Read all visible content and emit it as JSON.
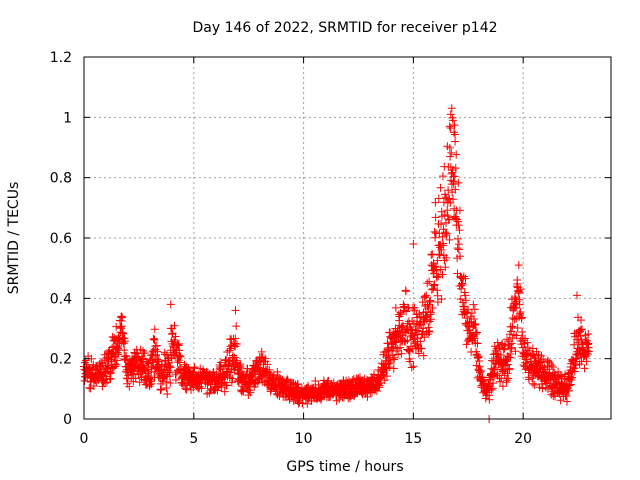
{
  "chart_data": {
    "type": "scatter",
    "title": "Day 146 of 2022, SRMTID for receiver p142",
    "xlabel": "GPS time / hours",
    "ylabel": "SRMTID / TECUs",
    "xlim": [
      0,
      24
    ],
    "ylim": [
      0,
      1.2
    ],
    "xticks": [
      0,
      5,
      10,
      15,
      20
    ],
    "xtick_labels": [
      "0",
      "5",
      "10",
      "15",
      "20"
    ],
    "yticks": [
      0,
      0.2,
      0.4,
      0.6,
      0.8,
      1.0,
      1.2
    ],
    "ytick_labels": [
      "0",
      "0.2",
      "0.4",
      "0.6",
      "0.8",
      "1",
      "1.2"
    ],
    "grid": true,
    "marker": "+",
    "color": "#ff0000",
    "envelope": {
      "x": [
        0.0,
        0.5,
        1.0,
        1.5,
        1.75,
        2.0,
        2.5,
        3.0,
        3.2,
        3.5,
        3.9,
        4.0,
        4.5,
        5.0,
        5.5,
        6.0,
        6.5,
        6.9,
        7.0,
        7.5,
        8.0,
        8.5,
        9.0,
        9.5,
        10.0,
        10.5,
        11.0,
        11.5,
        12.0,
        12.5,
        13.0,
        13.5,
        14.0,
        14.3,
        14.6,
        14.9,
        15.2,
        15.5,
        15.8,
        16.0,
        16.2,
        16.4,
        16.6,
        16.8,
        16.9,
        17.0,
        17.2,
        17.5,
        17.8,
        18.0,
        18.3,
        18.5,
        18.8,
        19.0,
        19.3,
        19.6,
        19.8,
        20.0,
        20.3,
        20.6,
        21.0,
        21.5,
        22.0,
        22.3,
        22.5,
        22.8,
        23.0
      ],
      "y": [
        0.16,
        0.15,
        0.16,
        0.24,
        0.3,
        0.15,
        0.2,
        0.14,
        0.22,
        0.14,
        0.18,
        0.25,
        0.15,
        0.13,
        0.13,
        0.12,
        0.16,
        0.25,
        0.14,
        0.12,
        0.18,
        0.12,
        0.11,
        0.09,
        0.08,
        0.09,
        0.1,
        0.09,
        0.1,
        0.11,
        0.1,
        0.14,
        0.24,
        0.28,
        0.36,
        0.26,
        0.3,
        0.34,
        0.4,
        0.52,
        0.58,
        0.62,
        0.78,
        0.88,
        0.8,
        0.62,
        0.45,
        0.3,
        0.28,
        0.16,
        0.08,
        0.12,
        0.2,
        0.18,
        0.2,
        0.34,
        0.4,
        0.22,
        0.18,
        0.17,
        0.15,
        0.12,
        0.1,
        0.2,
        0.26,
        0.22,
        0.24
      ],
      "spread": [
        0.05,
        0.05,
        0.05,
        0.07,
        0.08,
        0.05,
        0.07,
        0.05,
        0.08,
        0.05,
        0.09,
        0.1,
        0.05,
        0.04,
        0.04,
        0.04,
        0.06,
        0.1,
        0.05,
        0.04,
        0.06,
        0.04,
        0.04,
        0.03,
        0.03,
        0.03,
        0.03,
        0.03,
        0.03,
        0.03,
        0.03,
        0.04,
        0.08,
        0.09,
        0.12,
        0.09,
        0.1,
        0.12,
        0.14,
        0.18,
        0.2,
        0.2,
        0.2,
        0.18,
        0.18,
        0.2,
        0.16,
        0.08,
        0.08,
        0.05,
        0.03,
        0.05,
        0.08,
        0.08,
        0.08,
        0.12,
        0.12,
        0.07,
        0.06,
        0.06,
        0.05,
        0.05,
        0.04,
        0.08,
        0.09,
        0.06,
        0.04
      ],
      "samples_per_hour": 90,
      "x_end": 23.0
    },
    "peaks": [
      {
        "x": 16.75,
        "y": 1.03
      },
      {
        "x": 16.7,
        "y": 1.01
      },
      {
        "x": 16.8,
        "y": 0.99
      },
      {
        "x": 16.65,
        "y": 0.97
      },
      {
        "x": 16.85,
        "y": 0.95
      },
      {
        "x": 16.9,
        "y": 0.92
      },
      {
        "x": 15.0,
        "y": 0.58
      },
      {
        "x": 19.8,
        "y": 0.51
      },
      {
        "x": 22.45,
        "y": 0.41
      },
      {
        "x": 3.95,
        "y": 0.38
      },
      {
        "x": 6.9,
        "y": 0.36
      },
      {
        "x": 1.7,
        "y": 0.34
      },
      {
        "x": 18.45,
        "y": 0.0
      }
    ]
  }
}
